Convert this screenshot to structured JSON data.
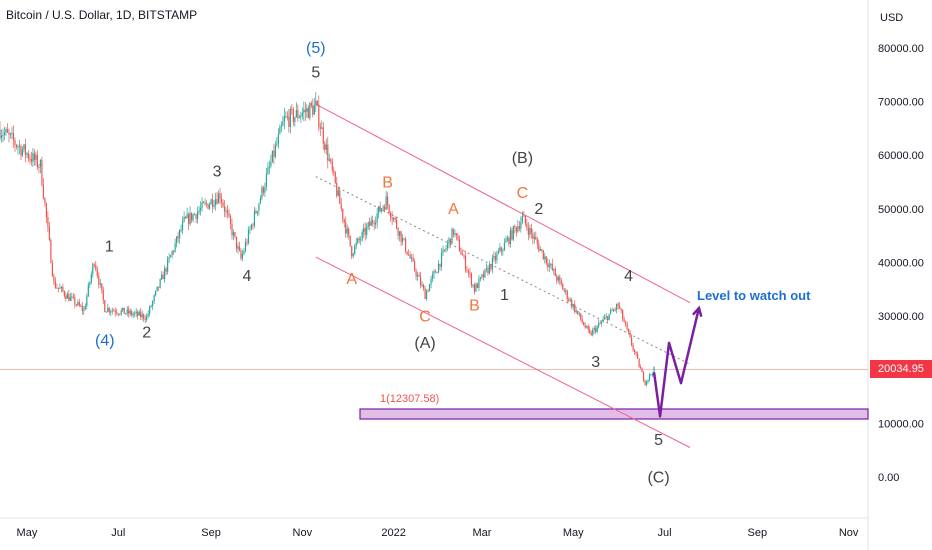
{
  "header": {
    "title": "Bitcoin / U.S. Dollar, 1D, BITSTAMP"
  },
  "axis": {
    "currency": "USD",
    "y_ticks": [
      "80000.00",
      "70000.00",
      "60000.00",
      "50000.00",
      "40000.00",
      "30000.00",
      "10000.00",
      "0.00"
    ],
    "x_ticks": [
      "May",
      "Jul",
      "Sep",
      "Nov",
      "2022",
      "Mar",
      "May",
      "Jul",
      "Sep",
      "Nov"
    ],
    "current_price": "20034.95"
  },
  "annotations": {
    "fib_label": "1(12307.58)",
    "callout": "Level to watch out"
  },
  "colors": {
    "up": "#26a69a",
    "down": "#ef5350",
    "channel": "#f06292",
    "blue_wave": "#1e6fd0",
    "orange_wave": "#f4743b",
    "gray_wave": "#444444",
    "projection": "#7b1fa2",
    "zone_fill": "#e1bee7",
    "price_tag": "#f23645"
  },
  "chart_data": {
    "type": "candlestick",
    "title": "Bitcoin / U.S. Dollar, 1D, BITSTAMP",
    "ylabel": "USD",
    "ylim": [
      -8000,
      86000
    ],
    "current_price": 20034.95,
    "fib_target": 12307.58,
    "price_path": [
      {
        "x": "2021-04-13",
        "y": 64800
      },
      {
        "x": "2021-05-10",
        "y": 58000
      },
      {
        "x": "2021-05-19",
        "y": 36000
      },
      {
        "x": "2021-06-08",
        "y": 31000
      },
      {
        "x": "2021-06-15",
        "y": 40500
      },
      {
        "x": "2021-06-22",
        "y": 31500
      },
      {
        "x": "2021-07-20",
        "y": 29800
      },
      {
        "x": "2021-08-14",
        "y": 47500
      },
      {
        "x": "2021-09-07",
        "y": 52700
      },
      {
        "x": "2021-09-21",
        "y": 40600
      },
      {
        "x": "2021-10-20",
        "y": 66500
      },
      {
        "x": "2021-11-10",
        "y": 69000
      },
      {
        "x": "2021-12-04",
        "y": 42000
      },
      {
        "x": "2021-12-27",
        "y": 51500
      },
      {
        "x": "2022-01-22",
        "y": 34000
      },
      {
        "x": "2022-02-10",
        "y": 45800
      },
      {
        "x": "2022-02-24",
        "y": 35000
      },
      {
        "x": "2022-03-28",
        "y": 48200
      },
      {
        "x": "2022-05-12",
        "y": 26500
      },
      {
        "x": "2022-05-31",
        "y": 32000
      },
      {
        "x": "2022-06-18",
        "y": 17600
      },
      {
        "x": "2022-06-24",
        "y": 20035
      }
    ],
    "wave_labels": [
      {
        "text": "(5)",
        "x": "2021-11-10",
        "y": 79000,
        "color": "blue"
      },
      {
        "text": "5",
        "x": "2021-11-10",
        "y": 74500,
        "color": "gray"
      },
      {
        "text": "(4)",
        "x": "2021-06-22",
        "y": 24500,
        "color": "blue"
      },
      {
        "text": "1",
        "x": "2021-06-25",
        "y": 42000,
        "color": "gray"
      },
      {
        "text": "2",
        "x": "2021-07-20",
        "y": 26000,
        "color": "gray"
      },
      {
        "text": "3",
        "x": "2021-09-05",
        "y": 56000,
        "color": "gray"
      },
      {
        "text": "4",
        "x": "2021-09-25",
        "y": 36500,
        "color": "gray"
      },
      {
        "text": "A",
        "x": "2021-12-04",
        "y": 36000,
        "color": "orange"
      },
      {
        "text": "B",
        "x": "2021-12-28",
        "y": 54000,
        "color": "orange"
      },
      {
        "text": "C",
        "x": "2022-01-22",
        "y": 29000,
        "color": "orange"
      },
      {
        "text": "(A)",
        "x": "2022-01-22",
        "y": 24000,
        "color": "gray"
      },
      {
        "text": "A",
        "x": "2022-02-10",
        "y": 49000,
        "color": "orange"
      },
      {
        "text": "B",
        "x": "2022-02-24",
        "y": 31000,
        "color": "orange"
      },
      {
        "text": "C",
        "x": "2022-03-28",
        "y": 52000,
        "color": "orange"
      },
      {
        "text": "(B)",
        "x": "2022-03-28",
        "y": 58500,
        "color": "gray"
      },
      {
        "text": "2",
        "x": "2022-04-08",
        "y": 49000,
        "color": "gray"
      },
      {
        "text": "1",
        "x": "2022-03-16",
        "y": 33000,
        "color": "gray"
      },
      {
        "text": "3",
        "x": "2022-05-16",
        "y": 20500,
        "color": "gray"
      },
      {
        "text": "4",
        "x": "2022-06-07",
        "y": 36500,
        "color": "gray"
      },
      {
        "text": "5",
        "x": "2022-06-27",
        "y": 6000,
        "color": "gray"
      },
      {
        "text": "(C)",
        "x": "2022-06-27",
        "y": -1000,
        "color": "gray"
      }
    ],
    "channel": {
      "upper": [
        {
          "x": "2021-11-10",
          "y": 69500
        },
        {
          "x": "2022-07-18",
          "y": 32500
        }
      ],
      "lower": [
        {
          "x": "2021-11-10",
          "y": 41000
        },
        {
          "x": "2022-07-18",
          "y": 5500
        }
      ],
      "mid": [
        {
          "x": "2021-11-10",
          "y": 56000
        },
        {
          "x": "2022-07-18",
          "y": 21000
        }
      ]
    },
    "projection": [
      {
        "x": "2022-06-24",
        "y": 19500
      },
      {
        "x": "2022-06-28",
        "y": 11300
      },
      {
        "x": "2022-07-04",
        "y": 25000
      },
      {
        "x": "2022-07-12",
        "y": 17500
      },
      {
        "x": "2022-07-24",
        "y": 31500
      }
    ]
  }
}
